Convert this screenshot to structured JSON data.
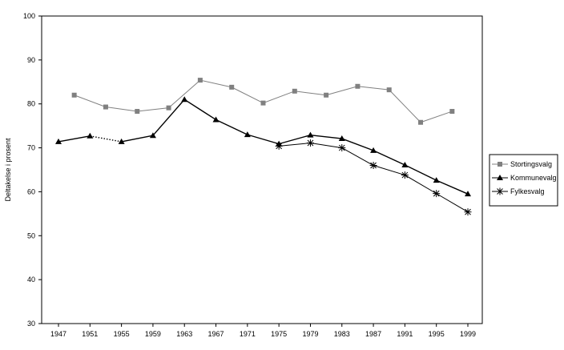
{
  "chart_data": {
    "type": "line",
    "ylabel": "Deltakelse i prosent",
    "ylim": [
      30,
      100
    ],
    "yticks": [
      "30",
      "40",
      "50",
      "60",
      "70",
      "80",
      "90",
      "100"
    ],
    "grid": false,
    "legend_placement": "right",
    "categories": [
      "1947",
      "1951",
      "1955",
      "1959",
      "1963",
      "1967",
      "1971",
      "1975",
      "1979",
      "1983",
      "1987",
      "1991",
      "1995",
      "1999"
    ],
    "series": [
      {
        "name": "Stortingsvalg",
        "marker": "square",
        "color": "#808080",
        "x": [
          "1949",
          "1953",
          "1957",
          "1961",
          "1965",
          "1969",
          "1973",
          "1977",
          "1981",
          "1985",
          "1989",
          "1993",
          "1997"
        ],
        "values": [
          82.0,
          79.3,
          78.3,
          79.1,
          85.4,
          83.8,
          80.2,
          82.9,
          82.0,
          84.0,
          83.2,
          75.8,
          78.3
        ]
      },
      {
        "name": "Kommunevalg",
        "marker": "triangle",
        "color": "#000000",
        "x": [
          "1947",
          "1951",
          "1955",
          "1959",
          "1963",
          "1967",
          "1971",
          "1975",
          "1979",
          "1983",
          "1987",
          "1991",
          "1995",
          "1999"
        ],
        "values": [
          71.4,
          72.7,
          71.4,
          72.8,
          81.0,
          76.4,
          73.0,
          70.9,
          72.9,
          72.1,
          69.4,
          66.1,
          62.6,
          59.5
        ]
      },
      {
        "name": "Fylkesvalg",
        "marker": "asterisk",
        "color": "#000000",
        "x": [
          "1975",
          "1979",
          "1983",
          "1987",
          "1991",
          "1995",
          "1999"
        ],
        "values": [
          70.4,
          71.1,
          70.0,
          66.0,
          63.8,
          59.6,
          55.4
        ]
      }
    ]
  }
}
